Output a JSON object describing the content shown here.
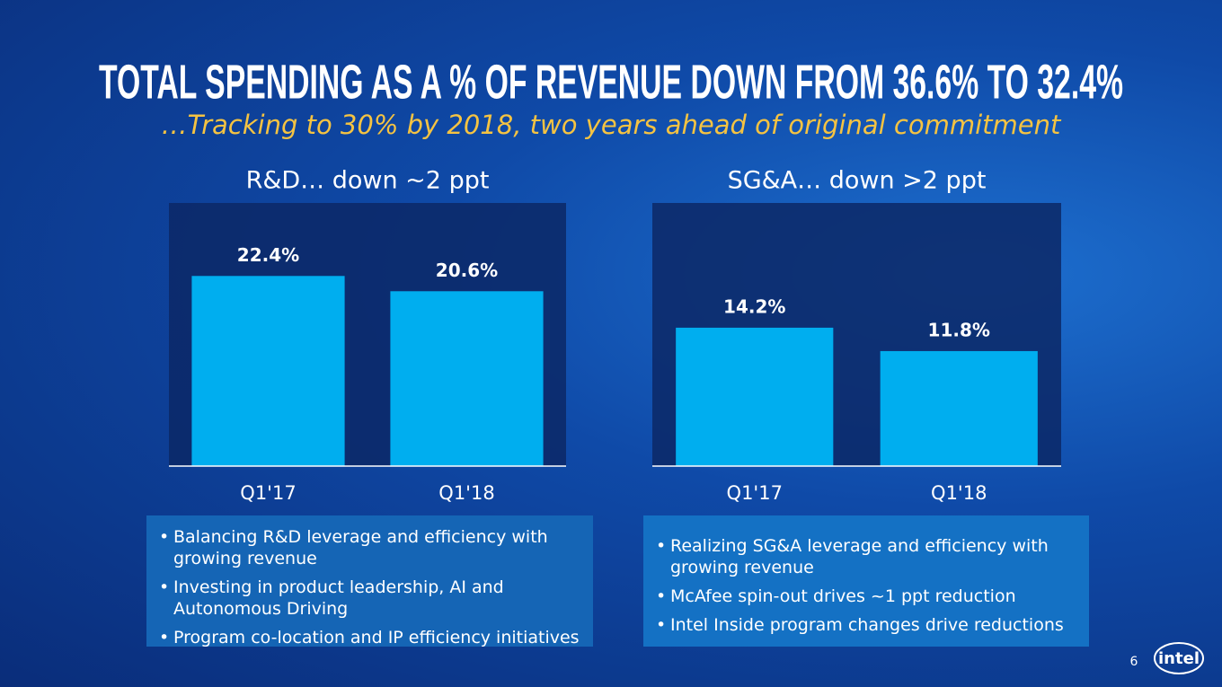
{
  "title": "TOTAL SPENDING AS A % OF REVENUE DOWN FROM 36.6% TO 32.4%",
  "subtitle": "…Tracking to 30% by 2018, two years ahead of original commitment",
  "chart_data": [
    {
      "type": "bar",
      "title": "R&D… down ~2 ppt",
      "categories": [
        "Q1'17",
        "Q1'18"
      ],
      "values": [
        22.4,
        20.6
      ],
      "value_labels": [
        "22.4%",
        "20.6%"
      ],
      "color": "#00aeef",
      "ylim": [
        0,
        31
      ]
    },
    {
      "type": "bar",
      "title": "SG&A… down >2 ppt",
      "categories": [
        "Q1'17",
        "Q1'18"
      ],
      "values": [
        14.2,
        11.8
      ],
      "value_labels": [
        "14.2%",
        "11.8%"
      ],
      "color": "#00aeef",
      "ylim": [
        0,
        27
      ]
    }
  ],
  "bullets": [
    [
      "Balancing R&D leverage and efficiency with growing revenue",
      "Investing in product leadership, AI and Autonomous Driving",
      "Program co-location and IP efficiency initiatives"
    ],
    [
      "Realizing SG&A leverage and efficiency with growing revenue",
      "McAfee spin-out drives ~1 ppt reduction",
      "Intel Inside program changes drive reductions"
    ]
  ],
  "page_number": "6",
  "logo": "intel"
}
